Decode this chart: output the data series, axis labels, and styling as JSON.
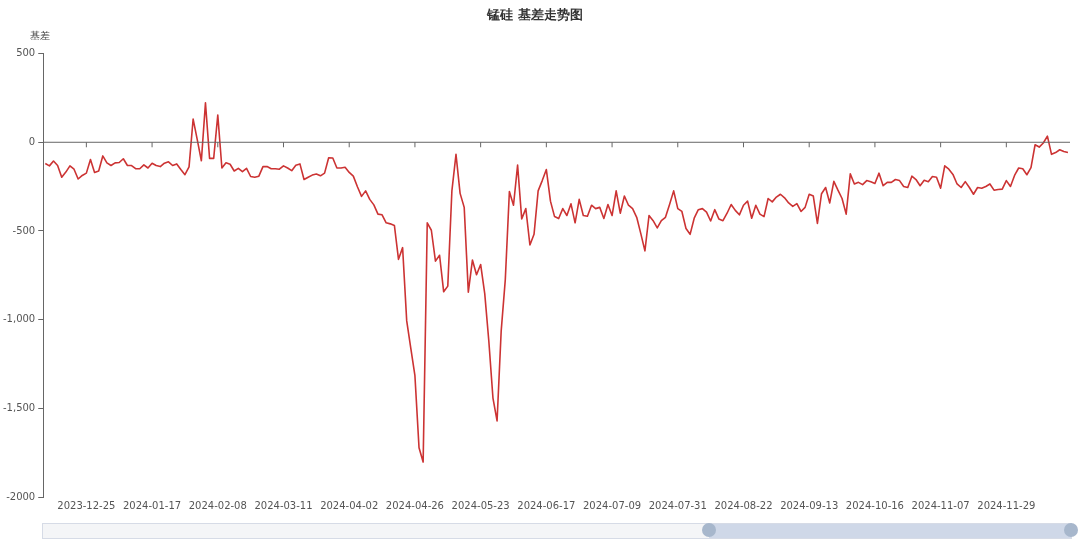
{
  "chart_data": {
    "type": "line",
    "title": "锰硅 基差走势图",
    "ylabel": "基差",
    "color": "#cc3333",
    "legend": false,
    "marker": "none",
    "categories": [
      null,
      null,
      null,
      null,
      null,
      null,
      null,
      null,
      null,
      null,
      "2023-12-25",
      null,
      null,
      null,
      null,
      null,
      null,
      null,
      null,
      null,
      null,
      null,
      null,
      null,
      null,
      null,
      "2024-01-17",
      null,
      null,
      null,
      null,
      null,
      null,
      null,
      null,
      null,
      null,
      null,
      null,
      null,
      null,
      null,
      "2024-02-08",
      null,
      null,
      null,
      null,
      null,
      null,
      null,
      null,
      null,
      null,
      null,
      null,
      null,
      null,
      null,
      "2024-03-11",
      null,
      null,
      null,
      null,
      null,
      null,
      null,
      null,
      null,
      null,
      null,
      null,
      null,
      null,
      null,
      "2024-04-02",
      null,
      null,
      null,
      null,
      null,
      null,
      null,
      null,
      null,
      null,
      null,
      null,
      null,
      null,
      null,
      "2024-04-26",
      null,
      null,
      null,
      null,
      null,
      null,
      null,
      null,
      null,
      null,
      null,
      null,
      null,
      null,
      null,
      "2024-05-23",
      null,
      null,
      null,
      null,
      null,
      null,
      null,
      null,
      null,
      null,
      null,
      null,
      null,
      null,
      null,
      "2024-06-17",
      null,
      null,
      null,
      null,
      null,
      null,
      null,
      null,
      null,
      null,
      null,
      null,
      null,
      null,
      null,
      "2024-07-09",
      null,
      null,
      null,
      null,
      null,
      null,
      null,
      null,
      null,
      null,
      null,
      null,
      null,
      null,
      null,
      "2024-07-31",
      null,
      null,
      null,
      null,
      null,
      null,
      null,
      null,
      null,
      null,
      null,
      null,
      null,
      null,
      null,
      "2024-08-22",
      null,
      null,
      null,
      null,
      null,
      null,
      null,
      null,
      null,
      null,
      null,
      null,
      null,
      null,
      null,
      "2024-09-13",
      null,
      null,
      null,
      null,
      null,
      null,
      null,
      null,
      null,
      null,
      null,
      null,
      null,
      null,
      null,
      "2024-10-16",
      null,
      null,
      null,
      null,
      null,
      null,
      null,
      null,
      null,
      null,
      null,
      null,
      null,
      null,
      null,
      "2024-11-07",
      null,
      null,
      null,
      null,
      null,
      null,
      null,
      null,
      null,
      null,
      null,
      null,
      null,
      null,
      null,
      "2024-11-29",
      null,
      null,
      null,
      null,
      null,
      null,
      null,
      null,
      null,
      null,
      null,
      null,
      null,
      null,
      null
    ],
    "values": [
      -120,
      -133,
      -106,
      -131,
      -197,
      -168,
      -133,
      -152,
      -207,
      -187,
      -174,
      -97,
      -170,
      -162,
      -77,
      -116,
      -131,
      -116,
      -114,
      -93,
      -131,
      -131,
      -149,
      -149,
      -127,
      -145,
      -118,
      -131,
      -137,
      -118,
      -110,
      -131,
      -122,
      -154,
      -183,
      -139,
      131,
      15,
      -104,
      222,
      -91,
      -91,
      154,
      -145,
      -116,
      -124,
      -162,
      -147,
      -166,
      -147,
      -193,
      -197,
      -191,
      -137,
      -137,
      -149,
      -149,
      -152,
      -133,
      -145,
      -160,
      -129,
      -122,
      -210,
      -197,
      -185,
      -179,
      -189,
      -174,
      -87,
      -89,
      -145,
      -145,
      -141,
      -170,
      -191,
      -251,
      -305,
      -274,
      -322,
      -353,
      -405,
      -409,
      -454,
      -460,
      -469,
      -660,
      -594,
      -1007,
      -1162,
      -1316,
      -1722,
      -1803,
      -454,
      -496,
      -670,
      -637,
      -843,
      -811,
      -274,
      -68,
      -288,
      -367,
      -845,
      -664,
      -747,
      -689,
      -853,
      -1123,
      -1442,
      -1571,
      -1065,
      -776,
      -278,
      -355,
      -129,
      -432,
      -374,
      -579,
      -519,
      -274,
      -216,
      -154,
      -332,
      -419,
      -430,
      -374,
      -413,
      -347,
      -454,
      -322,
      -413,
      -417,
      -355,
      -374,
      -367,
      -430,
      -351,
      -413,
      -274,
      -400,
      -303,
      -355,
      -374,
      -423,
      -515,
      -612,
      -413,
      -442,
      -483,
      -442,
      -423,
      -351,
      -274,
      -374,
      -390,
      -486,
      -519,
      -428,
      -380,
      -374,
      -394,
      -444,
      -380,
      -432,
      -442,
      -400,
      -351,
      -384,
      -409,
      -355,
      -332,
      -428,
      -355,
      -405,
      -419,
      -317,
      -336,
      -309,
      -293,
      -313,
      -342,
      -361,
      -346,
      -390,
      -367,
      -293,
      -303,
      -457,
      -290,
      -255,
      -342,
      -220,
      -270,
      -317,
      -405,
      -178,
      -235,
      -226,
      -239,
      -216,
      -222,
      -232,
      -174,
      -245,
      -226,
      -226,
      -210,
      -216,
      -249,
      -255,
      -191,
      -210,
      -245,
      -214,
      -222,
      -193,
      -197,
      -259,
      -133,
      -152,
      -181,
      -235,
      -255,
      -222,
      -255,
      -293,
      -255,
      -259,
      -249,
      -235,
      -270,
      -266,
      -264,
      -216,
      -249,
      -187,
      -145,
      -149,
      -183,
      -143,
      -14,
      -27,
      -4,
      35,
      -68,
      -58,
      -42,
      -52,
      -58
    ],
    "ylim": [
      -2000,
      500
    ],
    "yticks": [
      -2000,
      {
        "value": -1500,
        "label": "-1,500"
      },
      {
        "value": -1000,
        "label": "-1,000"
      },
      -500,
      0,
      500
    ]
  }
}
